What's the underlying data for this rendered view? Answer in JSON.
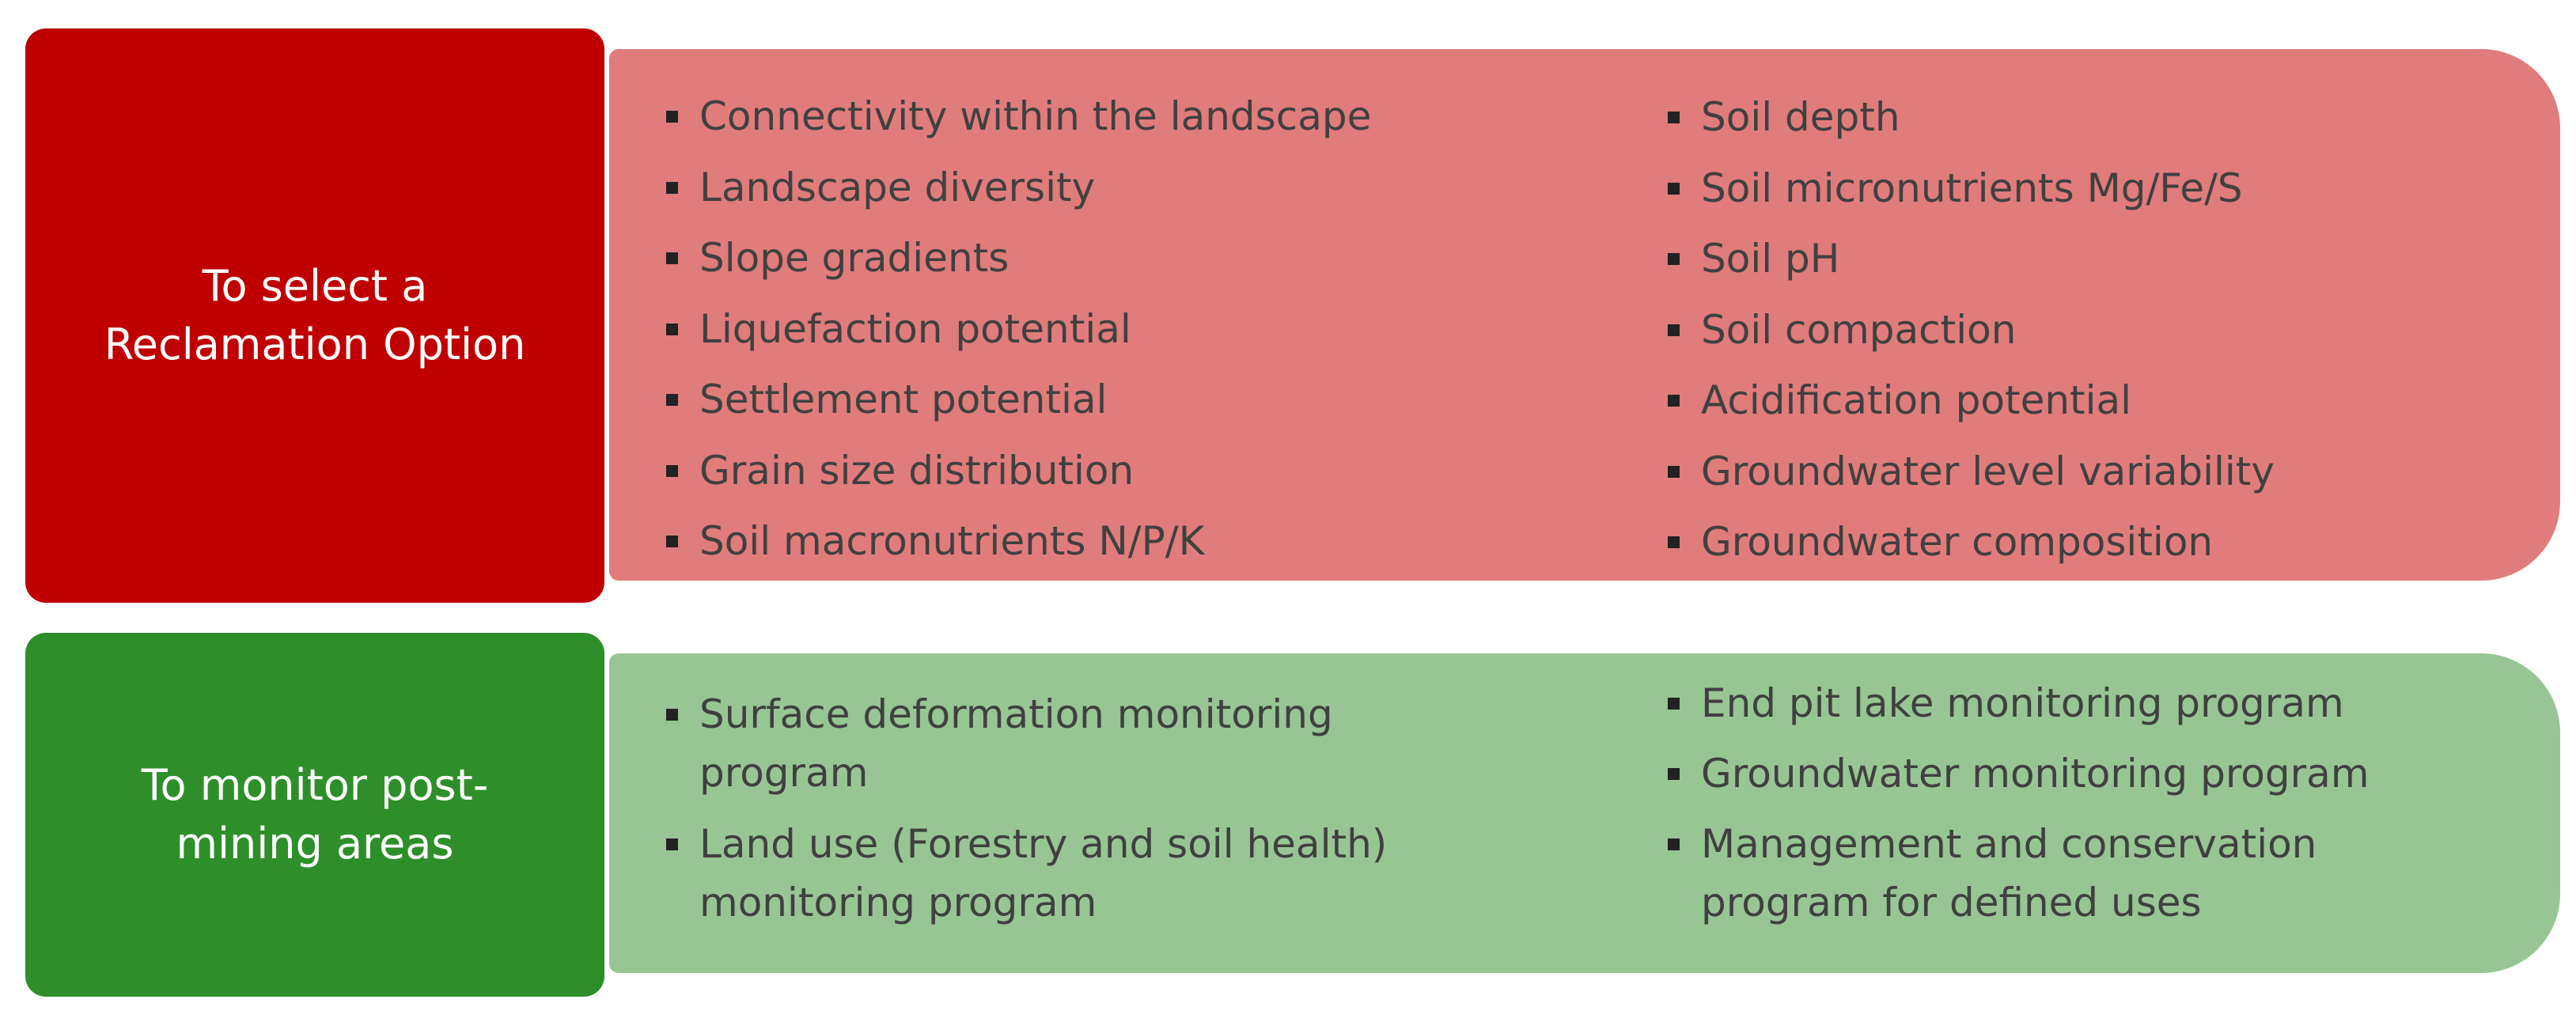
{
  "select": {
    "label_lines": [
      "To select a",
      "Reclamation Option"
    ],
    "left_items": [
      "Connectivity within the landscape",
      "Landscape diversity",
      "Slope gradients",
      "Liquefaction potential",
      "Settlement potential",
      "Grain size distribution",
      "Soil macronutrients N/P/K"
    ],
    "right_items": [
      "Soil depth",
      "Soil micronutrients Mg/Fe/S",
      "Soil pH",
      "Soil compaction",
      "Acidification potential",
      "Groundwater level variability",
      "Groundwater composition"
    ]
  },
  "monitor": {
    "label_lines": [
      "To monitor post-",
      "mining areas"
    ],
    "left_items": [
      [
        "Surface deformation monitoring",
        "program"
      ],
      [
        "Land use (Forestry and soil health)",
        "monitoring program"
      ]
    ],
    "right_items": [
      [
        "End pit lake monitoring program"
      ],
      [
        "Groundwater monitoring program"
      ],
      [
        "Management and conservation",
        "program for defined uses"
      ]
    ]
  },
  "colors": {
    "select_label_bg": "#c00000",
    "select_panel_bg": "#e07c7b",
    "monitor_label_bg": "#2e8f2a",
    "monitor_panel_bg": "#97c694"
  }
}
